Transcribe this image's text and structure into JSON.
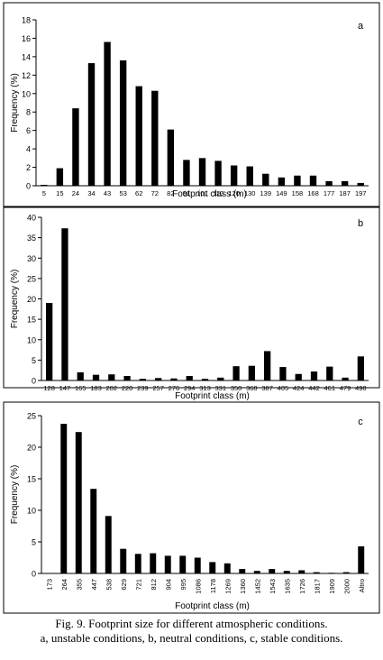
{
  "chart_data": [
    {
      "type": "bar",
      "panel_label": "a",
      "xlabel": "Footprint class (m)",
      "ylabel": "Frequency (%)",
      "ylim": [
        0,
        18
      ],
      "yticks": [
        "0",
        "2",
        "4",
        "6",
        "8",
        "10",
        "12",
        "14",
        "16",
        "18"
      ],
      "categories": [
        "5",
        "15",
        "24",
        "34",
        "43",
        "53",
        "62",
        "72",
        "82",
        "91",
        "101",
        "110",
        "120",
        "130",
        "139",
        "149",
        "158",
        "168",
        "177",
        "187",
        "197"
      ],
      "values": [
        0.1,
        1.9,
        8.4,
        13.3,
        15.6,
        13.6,
        10.8,
        10.3,
        6.1,
        2.8,
        3.0,
        2.7,
        2.2,
        2.1,
        1.3,
        0.9,
        1.1,
        1.1,
        0.5,
        0.5,
        0.3
      ],
      "grid": false
    },
    {
      "type": "bar",
      "panel_label": "b",
      "xlabel": "Footprint class (m)",
      "ylabel": "Frequency (%)",
      "ylim": [
        0,
        40
      ],
      "yticks": [
        "0",
        "5",
        "10",
        "15",
        "20",
        "25",
        "30",
        "35",
        "40"
      ],
      "categories": [
        "128",
        "147",
        "165",
        "183",
        "202",
        "220",
        "239",
        "257",
        "276",
        "294",
        "313",
        "331",
        "350",
        "368",
        "387",
        "405",
        "424",
        "442",
        "461",
        "479",
        "498"
      ],
      "values": [
        19.0,
        37.3,
        2.0,
        1.4,
        1.5,
        1.1,
        0.4,
        0.6,
        0.5,
        1.1,
        0.4,
        0.7,
        3.5,
        3.6,
        7.2,
        3.3,
        1.6,
        2.2,
        3.4,
        0.7,
        5.9
      ],
      "grid": false
    },
    {
      "type": "bar",
      "panel_label": "c",
      "xlabel": "Footprint class (m)",
      "ylabel": "Frequency (%)",
      "ylim": [
        0,
        25
      ],
      "yticks": [
        "0",
        "5",
        "10",
        "15",
        "20",
        "25"
      ],
      "categories": [
        "173",
        "264",
        "355",
        "447",
        "538",
        "629",
        "721",
        "812",
        "904",
        "995",
        "1086",
        "1178",
        "1269",
        "1360",
        "1452",
        "1543",
        "1635",
        "1726",
        "1817",
        "1909",
        "2000",
        "Altro"
      ],
      "values": [
        0.0,
        23.7,
        22.4,
        13.4,
        9.1,
        3.9,
        3.1,
        3.2,
        2.8,
        2.8,
        2.5,
        1.8,
        1.6,
        0.7,
        0.4,
        0.7,
        0.4,
        0.5,
        0.2,
        0.1,
        0.2,
        4.3
      ],
      "grid": false
    }
  ],
  "caption": {
    "line1": "Fig. 9. Footprint size for different atmospheric conditions.",
    "line2": "a, unstable conditions, b, neutral conditions, c, stable conditions."
  }
}
